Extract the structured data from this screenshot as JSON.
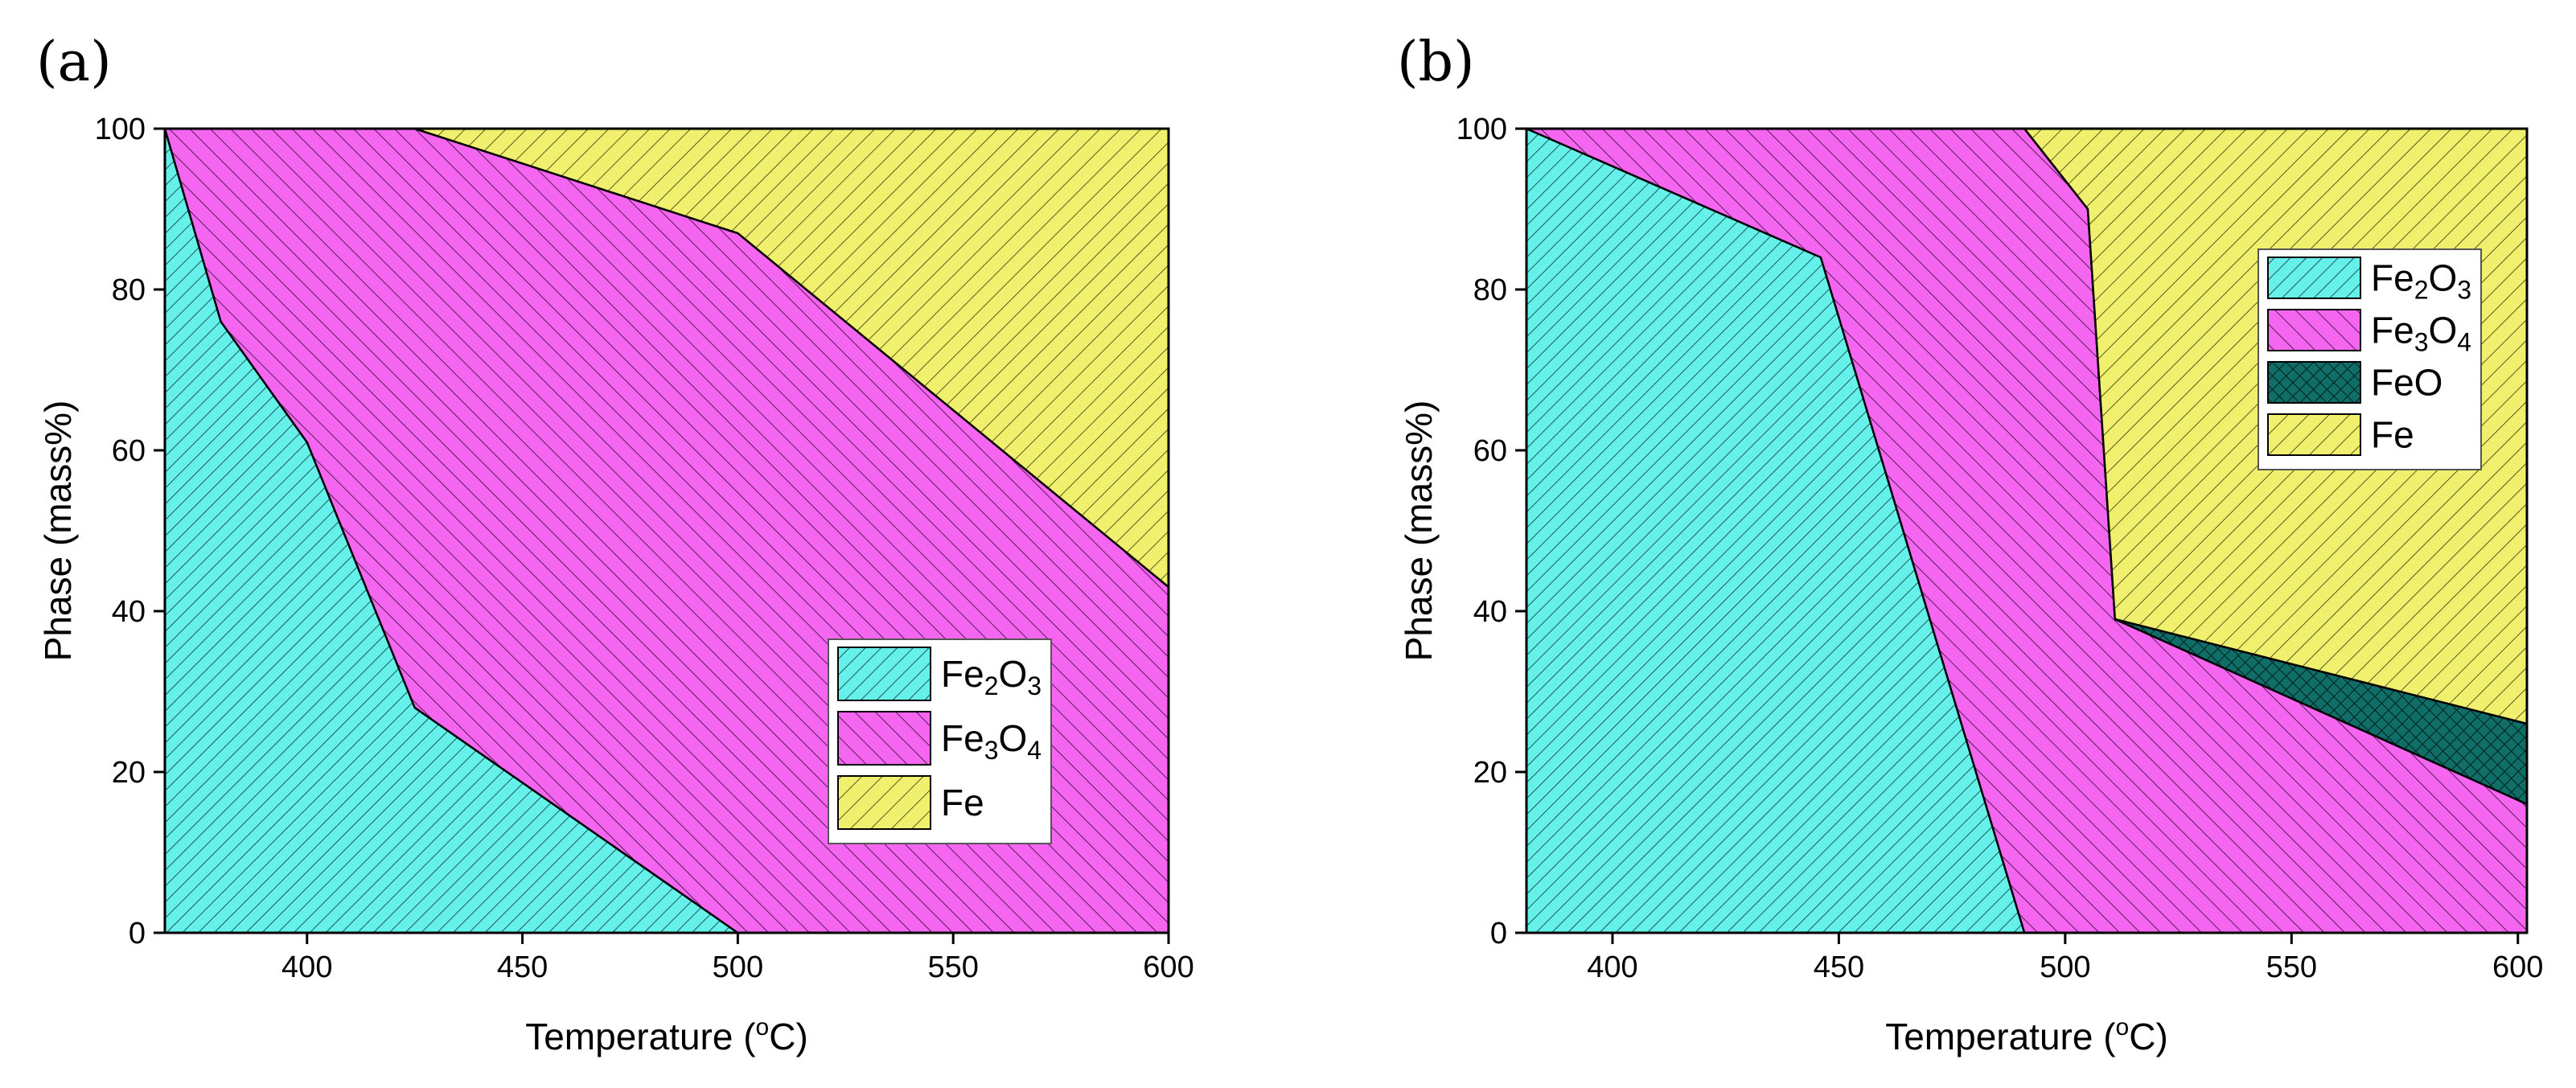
{
  "chart_data": [
    {
      "type": "area",
      "stacked": true,
      "panel_label": "(a)",
      "xlabel": "Temperature (oC)",
      "xlabel_parts": [
        "Temperature (",
        "o",
        "C)"
      ],
      "ylabel": "Phase (mass%)",
      "xlim": [
        367,
        600
      ],
      "ylim": [
        0,
        100
      ],
      "xticks": [
        400,
        450,
        500,
        550,
        600
      ],
      "yticks": [
        0,
        20,
        40,
        60,
        80,
        100
      ],
      "x": [
        367,
        380,
        400,
        425,
        500,
        600
      ],
      "series": [
        {
          "name": "Fe2O3",
          "label_parts": [
            "Fe",
            "2",
            "O",
            "3"
          ],
          "color": "#66F0EA",
          "pattern": "diag-fine",
          "values": [
            100,
            76,
            61,
            28,
            0,
            0
          ]
        },
        {
          "name": "Fe3O4",
          "label_parts": [
            "Fe",
            "3",
            "O",
            "4"
          ],
          "color": "#F566F0",
          "pattern": "diag-back",
          "values": [
            0,
            24,
            39,
            72,
            87,
            43
          ]
        },
        {
          "name": "Fe",
          "label_parts": [
            "Fe"
          ],
          "color": "#F0F06E",
          "pattern": "diag-fwd",
          "values": [
            0,
            0,
            0,
            0,
            13,
            57
          ]
        }
      ],
      "legend_location": "lower-right"
    },
    {
      "type": "area",
      "stacked": true,
      "panel_label": "(b)",
      "xlabel": "Temperature (oC)",
      "xlabel_parts": [
        "Temperature (",
        "o",
        "C)"
      ],
      "ylabel": "Phase (mass%)",
      "xlim": [
        381,
        602
      ],
      "ylim": [
        0,
        100
      ],
      "xticks": [
        400,
        450,
        500,
        550,
        600
      ],
      "yticks": [
        0,
        20,
        40,
        60,
        80,
        100
      ],
      "x": [
        381,
        446,
        491,
        505,
        511,
        602
      ],
      "series": [
        {
          "name": "Fe2O3",
          "label_parts": [
            "Fe",
            "2",
            "O",
            "3"
          ],
          "color": "#66F0EA",
          "pattern": "diag-fine",
          "values": [
            100,
            84,
            0,
            0,
            0,
            0
          ]
        },
        {
          "name": "Fe3O4",
          "label_parts": [
            "Fe",
            "3",
            "O",
            "4"
          ],
          "color": "#F566F0",
          "pattern": "diag-back",
          "values": [
            0,
            16,
            100,
            90,
            39,
            16
          ]
        },
        {
          "name": "FeO",
          "label_parts": [
            "FeO"
          ],
          "color": "#0F6E67",
          "pattern": "cross",
          "values": [
            0,
            0,
            0,
            0,
            0,
            10
          ]
        },
        {
          "name": "Fe",
          "label_parts": [
            "Fe"
          ],
          "color": "#F0F06E",
          "pattern": "diag-fwd",
          "values": [
            0,
            0,
            0,
            10,
            61,
            74
          ]
        }
      ],
      "extra_x": [
        {
          "x": 446,
          "fe2o3_top": 84,
          "fe_start": 100
        },
        {
          "x": 491,
          "fe_top_below": 96
        }
      ],
      "legend_location": "top-right"
    }
  ]
}
